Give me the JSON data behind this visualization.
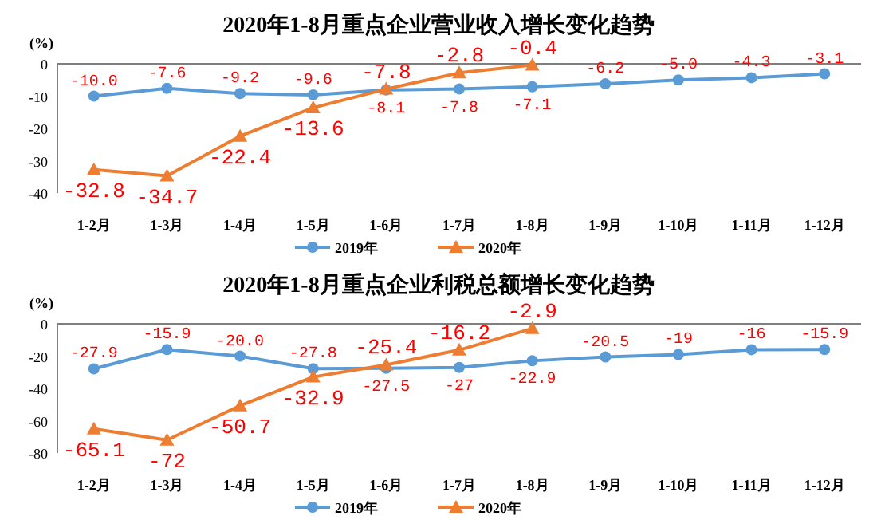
{
  "chart_data": [
    {
      "type": "line",
      "title": "2020年1-8月重点企业营业收入增长变化趋势",
      "ylabel": "(%)",
      "categories": [
        "1-2月",
        "1-3月",
        "1-4月",
        "1-5月",
        "1-6月",
        "1-7月",
        "1-8月",
        "1-9月",
        "1-10月",
        "1-11月",
        "1-12月"
      ],
      "ylim": [
        -40,
        0
      ],
      "yticks": [
        -40,
        -30,
        -20,
        -10,
        0
      ],
      "legend": "bottom",
      "grid": false,
      "series": [
        {
          "name": "2019年",
          "color": "#5b9bd5",
          "marker": "circle",
          "values": [
            -10.0,
            -7.6,
            -9.2,
            -9.6,
            -8.1,
            -7.8,
            -7.1,
            -6.2,
            -5.0,
            -4.3,
            -3.1
          ],
          "value_labels": [
            "-10.0",
            "-7.6",
            "-9.2",
            "-9.6",
            "-8.1",
            "-7.8",
            "-7.1",
            "-6.2",
            "-5.0",
            "-4.3",
            "-3.1"
          ]
        },
        {
          "name": "2020年",
          "color": "#ed7d31",
          "marker": "triangle",
          "values": [
            -32.8,
            -34.7,
            -22.4,
            -13.6,
            -7.8,
            -2.8,
            -0.4,
            null,
            null,
            null,
            null
          ],
          "value_labels": [
            "-32.8",
            "-34.7",
            "-22.4",
            "-13.6",
            "-7.8",
            "-2.8",
            "-0.4",
            null,
            null,
            null,
            null
          ]
        }
      ]
    },
    {
      "type": "line",
      "title": "2020年1-8月重点企业利税总额增长变化趋势",
      "ylabel": "(%)",
      "categories": [
        "1-2月",
        "1-3月",
        "1-4月",
        "1-5月",
        "1-6月",
        "1-7月",
        "1-8月",
        "1-9月",
        "1-10月",
        "1-11月",
        "1-12月"
      ],
      "ylim": [
        -80,
        0
      ],
      "yticks": [
        -80,
        -60,
        -40,
        -20,
        0
      ],
      "legend": "bottom",
      "grid": false,
      "series": [
        {
          "name": "2019年",
          "color": "#5b9bd5",
          "marker": "circle",
          "values": [
            -27.9,
            -15.9,
            -20.0,
            -27.8,
            -27.5,
            -27,
            -22.9,
            -20.5,
            -19,
            -16,
            -15.9
          ],
          "value_labels": [
            "-27.9",
            "-15.9",
            "-20.0",
            "-27.8",
            "-27.5",
            "-27",
            "-22.9",
            "-20.5",
            "-19",
            "-16",
            "-15.9"
          ]
        },
        {
          "name": "2020年",
          "color": "#ed7d31",
          "marker": "triangle",
          "values": [
            -65.1,
            -72,
            -50.7,
            -32.9,
            -25.4,
            -16.2,
            -2.9,
            null,
            null,
            null,
            null
          ],
          "value_labels": [
            "-65.1",
            "-72",
            "-50.7",
            "-32.9",
            "-25.4",
            "-16.2",
            "-2.9",
            null,
            null,
            null,
            null
          ]
        }
      ]
    }
  ]
}
